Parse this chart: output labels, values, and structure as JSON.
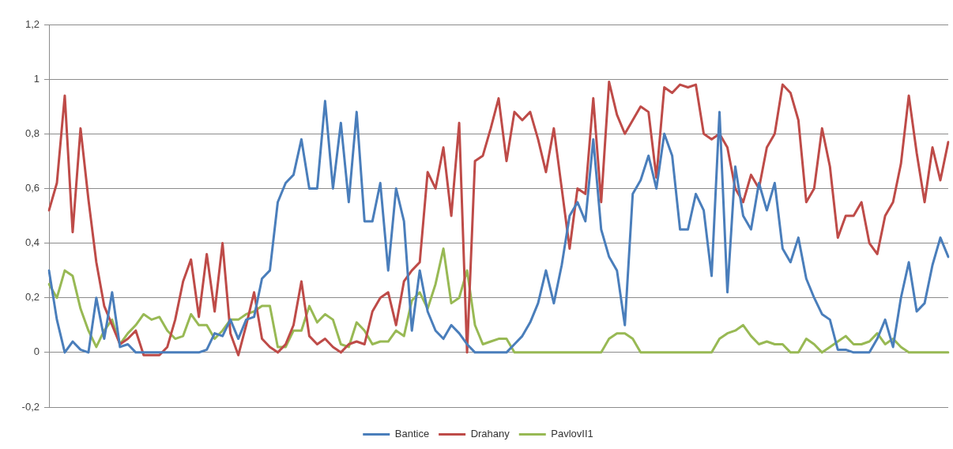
{
  "chart_data": {
    "type": "line",
    "categories": [
      null,
      null,
      null,
      null,
      null,
      null,
      null,
      null,
      null,
      null,
      null,
      null,
      null,
      null,
      null,
      null,
      null,
      null,
      null,
      null,
      null,
      null,
      null,
      null,
      null,
      null,
      null,
      null,
      null,
      null,
      null,
      null,
      null,
      null,
      null,
      null,
      null,
      null,
      null,
      null,
      null,
      null,
      null,
      null,
      null,
      null,
      null,
      null,
      null,
      null,
      null,
      null,
      null,
      null,
      null,
      null,
      null,
      null,
      null,
      null,
      null,
      null,
      null,
      null,
      null,
      null,
      null,
      null,
      null,
      null,
      null,
      null,
      null,
      null,
      null,
      null,
      null,
      null,
      null,
      null,
      null,
      null,
      null,
      null,
      null,
      null,
      null,
      null,
      null,
      null,
      null,
      null,
      null,
      null,
      null,
      null,
      null,
      null,
      null,
      null,
      null,
      null,
      null,
      null,
      null,
      null,
      null,
      null,
      null,
      null,
      null,
      null,
      null,
      null,
      null
    ],
    "series": [
      {
        "name": "Bantice",
        "color": "#4a7ebb",
        "values": [
          0.3,
          0.12,
          0.0,
          0.04,
          0.01,
          0.0,
          0.2,
          0.05,
          0.22,
          0.02,
          0.03,
          0.0,
          0.0,
          0.0,
          0.0,
          0.0,
          0.0,
          0.0,
          0.0,
          0.0,
          0.01,
          0.07,
          0.06,
          0.12,
          0.05,
          0.12,
          0.13,
          0.27,
          0.3,
          0.55,
          0.62,
          0.65,
          0.78,
          0.6,
          0.6,
          0.92,
          0.6,
          0.84,
          0.55,
          0.88,
          0.48,
          0.48,
          0.62,
          0.3,
          0.6,
          0.48,
          0.08,
          0.3,
          0.15,
          0.08,
          0.05,
          0.1,
          0.07,
          0.03,
          0.0,
          0.0,
          0.0,
          0.0,
          0.0,
          0.03,
          0.06,
          0.11,
          0.18,
          0.3,
          0.18,
          0.32,
          0.5,
          0.55,
          0.48,
          0.78,
          0.45,
          0.35,
          0.3,
          0.1,
          0.58,
          0.63,
          0.72,
          0.6,
          0.8,
          0.72,
          0.45,
          0.45,
          0.58,
          0.52,
          0.28,
          0.88,
          0.22,
          0.68,
          0.5,
          0.45,
          0.62,
          0.52,
          0.62,
          0.38,
          0.33,
          0.42,
          0.27,
          0.2,
          0.14,
          0.12,
          0.01,
          0.01,
          0.0,
          0.0,
          0.0,
          0.05,
          0.12,
          0.02,
          0.2,
          0.33,
          0.15,
          0.18,
          0.32,
          0.42,
          0.35
        ]
      },
      {
        "name": "Drahany",
        "color": "#be4b48",
        "values": [
          0.52,
          0.62,
          0.94,
          0.44,
          0.82,
          0.56,
          0.33,
          0.17,
          0.1,
          0.03,
          0.05,
          0.08,
          -0.01,
          -0.01,
          -0.01,
          0.02,
          0.12,
          0.26,
          0.34,
          0.13,
          0.36,
          0.15,
          0.4,
          0.07,
          -0.01,
          0.1,
          0.22,
          0.05,
          0.02,
          0.0,
          0.03,
          0.1,
          0.26,
          0.06,
          0.03,
          0.05,
          0.02,
          0.0,
          0.03,
          0.04,
          0.03,
          0.15,
          0.2,
          0.22,
          0.1,
          0.26,
          0.3,
          0.33,
          0.66,
          0.6,
          0.75,
          0.5,
          0.84,
          0.0,
          0.7,
          0.72,
          0.82,
          0.93,
          0.7,
          0.88,
          0.85,
          0.88,
          0.78,
          0.66,
          0.82,
          0.6,
          0.38,
          0.6,
          0.58,
          0.93,
          0.55,
          0.99,
          0.87,
          0.8,
          0.85,
          0.9,
          0.88,
          0.64,
          0.97,
          0.95,
          0.98,
          0.97,
          0.98,
          0.8,
          0.78,
          0.8,
          0.75,
          0.6,
          0.55,
          0.65,
          0.6,
          0.75,
          0.8,
          0.98,
          0.95,
          0.85,
          0.55,
          0.6,
          0.82,
          0.68,
          0.42,
          0.5,
          0.5,
          0.55,
          0.4,
          0.36,
          0.5,
          0.55,
          0.69,
          0.94,
          0.73,
          0.55,
          0.75,
          0.63,
          0.77
        ]
      },
      {
        "name": "PavlovII1",
        "color": "#98b954",
        "values": [
          0.25,
          0.2,
          0.3,
          0.28,
          0.16,
          0.08,
          0.02,
          0.08,
          0.12,
          0.03,
          0.07,
          0.1,
          0.14,
          0.12,
          0.13,
          0.08,
          0.05,
          0.06,
          0.14,
          0.1,
          0.1,
          0.05,
          0.08,
          0.12,
          0.12,
          0.14,
          0.15,
          0.17,
          0.17,
          0.02,
          0.02,
          0.08,
          0.08,
          0.17,
          0.11,
          0.14,
          0.12,
          0.03,
          0.02,
          0.11,
          0.08,
          0.03,
          0.04,
          0.04,
          0.08,
          0.06,
          0.19,
          0.22,
          0.16,
          0.25,
          0.38,
          0.18,
          0.2,
          0.3,
          0.1,
          0.03,
          0.04,
          0.05,
          0.05,
          0.0,
          0.0,
          0.0,
          0.0,
          0.0,
          0.0,
          0.0,
          0.0,
          0.0,
          0.0,
          0.0,
          0.0,
          0.05,
          0.07,
          0.07,
          0.05,
          0.0,
          0.0,
          0.0,
          0.0,
          0.0,
          0.0,
          0.0,
          0.0,
          0.0,
          0.0,
          0.05,
          0.07,
          0.08,
          0.1,
          0.06,
          0.03,
          0.04,
          0.03,
          0.03,
          0.0,
          0.0,
          0.05,
          0.03,
          0.0,
          0.02,
          0.04,
          0.06,
          0.03,
          0.03,
          0.04,
          0.07,
          0.03,
          0.05,
          0.02,
          0.0,
          0.0,
          0.0,
          0.0,
          0.0,
          0.0
        ]
      }
    ],
    "ylim": [
      -0.2,
      1.2
    ],
    "yticks": [
      {
        "value": -0.2,
        "label": "-0,2"
      },
      0,
      {
        "value": 0.2,
        "label": "0,2"
      },
      {
        "value": 0.4,
        "label": "0,4"
      },
      {
        "value": 0.6,
        "label": "0,6"
      },
      {
        "value": 0.8,
        "label": "0,8"
      },
      1,
      {
        "value": 1.2,
        "label": "1,2"
      }
    ],
    "grid": "y",
    "legend": "bottom",
    "tick_labels": "y",
    "marker": "none",
    "line_style": "solid"
  }
}
